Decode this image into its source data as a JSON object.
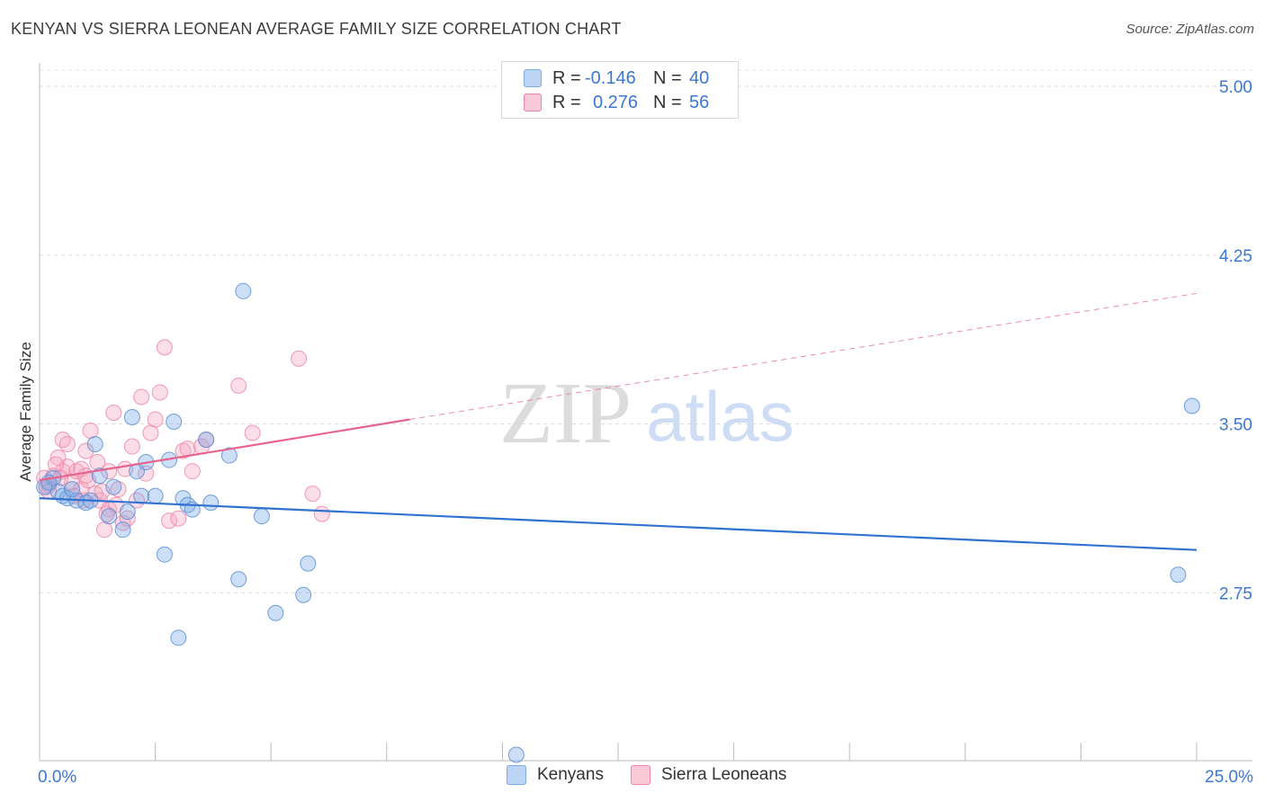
{
  "header": {
    "title": "KENYAN VS SIERRA LEONEAN AVERAGE FAMILY SIZE CORRELATION CHART",
    "source": "Source: ZipAtlas.com"
  },
  "watermark": {
    "zip": "ZIP",
    "atlas": "atlas"
  },
  "legend": {
    "kenyans": {
      "r_label": "R =",
      "r_value": "-0.146",
      "n_label": "N =",
      "n_value": "40",
      "color": "#a8c8f0"
    },
    "sierra": {
      "r_label": "R =",
      "r_value": "0.276",
      "n_label": "N =",
      "n_value": "56",
      "color": "#f7b7ca"
    }
  },
  "bottom_legend": {
    "kenyans": "Kenyans",
    "sierra": "Sierra Leoneans"
  },
  "chart_data": {
    "type": "scatter",
    "title": "KENYAN VS SIERRA LEONEAN AVERAGE FAMILY SIZE CORRELATION CHART",
    "xlabel": "",
    "ylabel": "Average Family Size",
    "xlim": [
      0,
      25
    ],
    "ylim": [
      2.0,
      5.1
    ],
    "x_tick_labels": [
      "0.0%",
      "25.0%"
    ],
    "y_ticks": [
      2.75,
      3.5,
      4.25,
      5.0
    ],
    "y_tick_labels": [
      "2.75",
      "3.50",
      "4.25",
      "5.00"
    ],
    "series": [
      {
        "name": "Kenyans",
        "color": "#7aaae8",
        "stroke": "#5b8fd6",
        "trend": {
          "x": [
            0,
            25
          ],
          "y": [
            3.17,
            2.94
          ],
          "color": "#2f72d0",
          "dashed_from": null
        },
        "points": [
          [
            0.1,
            3.22
          ],
          [
            0.3,
            3.26
          ],
          [
            0.4,
            3.2
          ],
          [
            0.5,
            3.18
          ],
          [
            0.6,
            3.17
          ],
          [
            0.8,
            3.16
          ],
          [
            1.0,
            3.15
          ],
          [
            1.2,
            3.41
          ],
          [
            1.3,
            3.27
          ],
          [
            1.6,
            3.22
          ],
          [
            1.8,
            3.03
          ],
          [
            1.9,
            3.11
          ],
          [
            2.0,
            3.53
          ],
          [
            2.1,
            3.29
          ],
          [
            2.2,
            3.18
          ],
          [
            2.3,
            3.33
          ],
          [
            2.5,
            3.18
          ],
          [
            2.7,
            2.92
          ],
          [
            2.8,
            3.34
          ],
          [
            3.0,
            2.55
          ],
          [
            3.1,
            3.17
          ],
          [
            3.2,
            3.14
          ],
          [
            3.3,
            3.12
          ],
          [
            3.6,
            3.43
          ],
          [
            3.7,
            3.15
          ],
          [
            4.1,
            3.36
          ],
          [
            4.3,
            2.81
          ],
          [
            4.4,
            4.09
          ],
          [
            4.8,
            3.09
          ],
          [
            5.1,
            2.66
          ],
          [
            5.7,
            2.74
          ],
          [
            5.8,
            2.88
          ],
          [
            10.3,
            2.03
          ],
          [
            24.6,
            2.83
          ],
          [
            24.9,
            3.58
          ],
          [
            0.2,
            3.24
          ],
          [
            0.7,
            3.21
          ],
          [
            1.1,
            3.16
          ],
          [
            1.5,
            3.09
          ],
          [
            2.9,
            3.51
          ]
        ]
      },
      {
        "name": "Sierra Leoneans",
        "color": "#f5a8c0",
        "stroke": "#ef86a8",
        "trend": {
          "x": [
            0,
            8.0,
            25
          ],
          "y": [
            3.25,
            3.52,
            4.08
          ],
          "color": "#e8648f",
          "dashed_from": 8.0
        },
        "points": [
          [
            0.1,
            3.26
          ],
          [
            0.2,
            3.23
          ],
          [
            0.3,
            3.27
          ],
          [
            0.4,
            3.35
          ],
          [
            0.5,
            3.29
          ],
          [
            0.5,
            3.43
          ],
          [
            0.6,
            3.41
          ],
          [
            0.6,
            3.31
          ],
          [
            0.7,
            3.24
          ],
          [
            0.8,
            3.29
          ],
          [
            0.9,
            3.21
          ],
          [
            0.9,
            3.3
          ],
          [
            1.0,
            3.38
          ],
          [
            1.0,
            3.27
          ],
          [
            1.1,
            3.47
          ],
          [
            1.2,
            3.19
          ],
          [
            1.3,
            3.16
          ],
          [
            1.4,
            3.03
          ],
          [
            1.5,
            3.12
          ],
          [
            1.5,
            3.29
          ],
          [
            1.6,
            3.55
          ],
          [
            1.7,
            3.21
          ],
          [
            1.8,
            3.06
          ],
          [
            1.9,
            3.08
          ],
          [
            2.0,
            3.4
          ],
          [
            2.1,
            3.16
          ],
          [
            2.2,
            3.62
          ],
          [
            2.3,
            3.28
          ],
          [
            2.4,
            3.46
          ],
          [
            2.5,
            3.52
          ],
          [
            2.6,
            3.64
          ],
          [
            2.7,
            3.84
          ],
          [
            2.8,
            3.07
          ],
          [
            3.0,
            3.08
          ],
          [
            3.1,
            3.38
          ],
          [
            3.2,
            3.39
          ],
          [
            3.3,
            3.29
          ],
          [
            3.5,
            3.4
          ],
          [
            3.6,
            3.43
          ],
          [
            4.3,
            3.67
          ],
          [
            4.6,
            3.46
          ],
          [
            5.6,
            3.79
          ],
          [
            5.9,
            3.19
          ],
          [
            6.1,
            3.1
          ],
          [
            0.2,
            3.2
          ],
          [
            0.35,
            3.32
          ],
          [
            0.75,
            3.18
          ],
          [
            1.05,
            3.25
          ],
          [
            1.25,
            3.33
          ],
          [
            1.45,
            3.1
          ],
          [
            1.65,
            3.14
          ],
          [
            1.85,
            3.3
          ],
          [
            0.15,
            3.22
          ],
          [
            0.45,
            3.26
          ],
          [
            0.95,
            3.16
          ],
          [
            1.35,
            3.2
          ]
        ]
      }
    ]
  }
}
